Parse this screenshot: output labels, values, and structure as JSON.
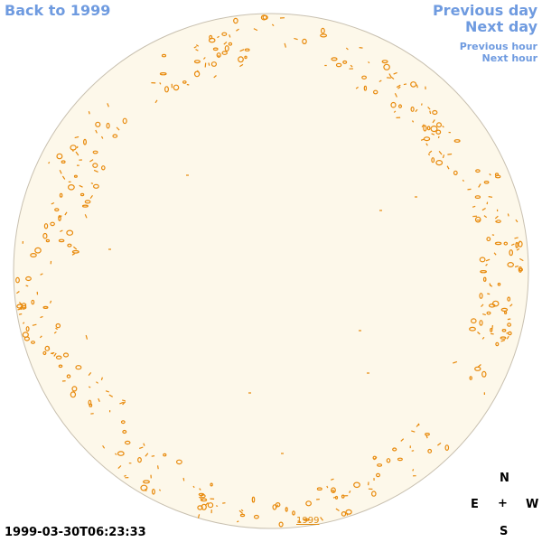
{
  "nav": {
    "back_label": "Back to 1999",
    "previous_day_label": "Previous day",
    "next_day_label": "Next day",
    "previous_hour_label": "Previous hour",
    "next_hour_label": "Next hour"
  },
  "timestamp": "1999-03-30T06:23:33",
  "compass": {
    "north": "N",
    "east": "E",
    "center": "+",
    "west": "W",
    "south": "S"
  },
  "year_mark": "1999",
  "colors": {
    "disk_fill": "#fdf8ea",
    "disk_outline": "#c8c0b0",
    "contour": "#e88a0c",
    "link": "#6f9be0"
  }
}
